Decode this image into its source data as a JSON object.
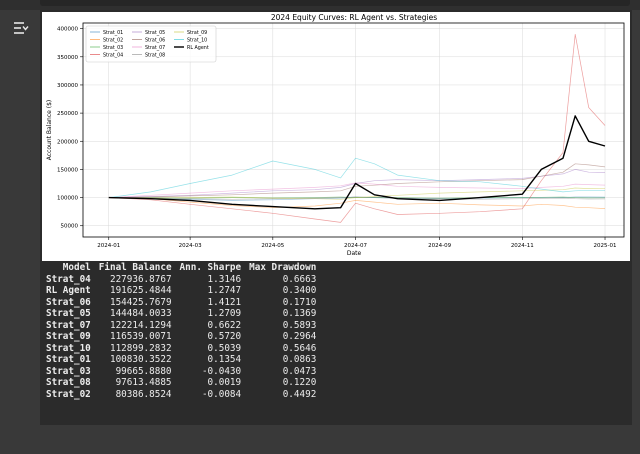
{
  "toolbar": {
    "toggle_icon": "output-toggle-icon"
  },
  "chart_data": {
    "type": "line",
    "title": "2024 Equity Curves: RL Agent vs. Strategies",
    "xlabel": "Date",
    "ylabel": "Account Balance ($)",
    "x_ticks": [
      "2024-01",
      "2024-03",
      "2024-05",
      "2024-07",
      "2024-09",
      "2024-11",
      "2025-01"
    ],
    "x_range": [
      "2023-12-13",
      "2025-01-15"
    ],
    "y_ticks": [
      50000,
      100000,
      150000,
      200000,
      250000,
      300000,
      350000,
      400000
    ],
    "y_range": [
      30000,
      410000
    ],
    "grid": true,
    "legend_position": "top-left",
    "x_dates": [
      "2024-01-01",
      "2024-02-01",
      "2024-03-01",
      "2024-04-01",
      "2024-05-01",
      "2024-06-01",
      "2024-06-20",
      "2024-07-01",
      "2024-07-15",
      "2024-08-01",
      "2024-09-01",
      "2024-10-01",
      "2024-11-01",
      "2024-11-15",
      "2024-12-01",
      "2024-12-10",
      "2024-12-20",
      "2025-01-01"
    ],
    "series": [
      {
        "name": "Strat_01",
        "color": "#1f77b4",
        "values": [
          100000,
          99000,
          97000,
          95000,
          96000,
          98000,
          99000,
          101000,
          100000,
          99000,
          98000,
          99000,
          100000,
          100500,
          100000,
          101000,
          101000,
          100831
        ]
      },
      {
        "name": "Strat_02",
        "color": "#ff7f0e",
        "values": [
          100000,
          98000,
          92000,
          86000,
          82000,
          85000,
          90000,
          95000,
          92000,
          88000,
          90000,
          87000,
          85000,
          88000,
          86000,
          83000,
          82000,
          80387
        ]
      },
      {
        "name": "Strat_03",
        "color": "#2ca02c",
        "values": [
          100000,
          100000,
          99000,
          100000,
          99500,
          100000,
          101000,
          100000,
          100500,
          100000,
          99000,
          100000,
          100000,
          100500,
          101000,
          100000,
          99500,
          99666
        ]
      },
      {
        "name": "Strat_04",
        "color": "#d62728",
        "values": [
          100000,
          96000,
          88000,
          80000,
          72000,
          62000,
          56000,
          90000,
          80000,
          70000,
          72000,
          75000,
          80000,
          130000,
          180000,
          390000,
          260000,
          227937
        ]
      },
      {
        "name": "Strat_05",
        "color": "#9467bd",
        "values": [
          100000,
          102000,
          104000,
          108000,
          112000,
          114000,
          118000,
          125000,
          130000,
          132000,
          130000,
          132000,
          134000,
          138000,
          142000,
          150000,
          145000,
          144484
        ]
      },
      {
        "name": "Strat_06",
        "color": "#8c564b",
        "values": [
          100000,
          101000,
          103000,
          105000,
          108000,
          110000,
          112000,
          120000,
          122000,
          125000,
          128000,
          130000,
          132000,
          138000,
          145000,
          160000,
          158000,
          154426
        ]
      },
      {
        "name": "Strat_07",
        "color": "#e377c2",
        "values": [
          100000,
          104000,
          108000,
          112000,
          115000,
          118000,
          121000,
          126000,
          124000,
          120000,
          118000,
          117000,
          116000,
          118000,
          120000,
          124000,
          123000,
          122214
        ]
      },
      {
        "name": "Strat_08",
        "color": "#7f7f7f",
        "values": [
          100000,
          99000,
          98000,
          97000,
          98000,
          99000,
          100000,
          101000,
          100000,
          99000,
          98000,
          97000,
          98000,
          98500,
          99000,
          98000,
          97500,
          97613
        ]
      },
      {
        "name": "Strat_09",
        "color": "#bcbd22",
        "values": [
          100000,
          99000,
          100000,
          101000,
          99000,
          98000,
          97000,
          100000,
          102000,
          104000,
          108000,
          110000,
          112000,
          113000,
          114000,
          117000,
          116000,
          116539
        ]
      },
      {
        "name": "Strat_10",
        "color": "#17becf",
        "values": [
          100000,
          110000,
          125000,
          140000,
          165000,
          150000,
          135000,
          170000,
          160000,
          140000,
          130000,
          128000,
          120000,
          115000,
          110000,
          112000,
          113000,
          112899
        ]
      },
      {
        "name": "RL Agent",
        "color": "#000000",
        "values": [
          100000,
          98000,
          95000,
          88000,
          84000,
          80000,
          82000,
          125000,
          105000,
          98000,
          95000,
          100000,
          106000,
          150000,
          170000,
          245000,
          200000,
          191625
        ]
      }
    ]
  },
  "table": {
    "headers": [
      "Model",
      "Final Balance",
      "Ann. Sharpe",
      "Max Drawdown"
    ],
    "rows": [
      [
        "Strat_04",
        "227936.8767",
        "1.3146",
        "0.6663"
      ],
      [
        "RL Agent",
        "191625.4844",
        "1.2747",
        "0.3400"
      ],
      [
        "Strat_06",
        "154425.7679",
        "1.4121",
        "0.1710"
      ],
      [
        "Strat_05",
        "144484.0033",
        "1.2709",
        "0.1369"
      ],
      [
        "Strat_07",
        "122214.1294",
        "0.6622",
        "0.5893"
      ],
      [
        "Strat_09",
        "116539.0071",
        "0.5720",
        "0.2964"
      ],
      [
        "Strat_10",
        "112899.2832",
        "0.5039",
        "0.5646"
      ],
      [
        "Strat_01",
        "100830.3522",
        "0.1354",
        "0.0863"
      ],
      [
        "Strat_03",
        "99665.8880",
        "-0.0430",
        "0.0473"
      ],
      [
        "Strat_08",
        "97613.4885",
        "0.0019",
        "0.1220"
      ],
      [
        "Strat_02",
        "80386.8524",
        "-0.0084",
        "0.4492"
      ]
    ]
  }
}
